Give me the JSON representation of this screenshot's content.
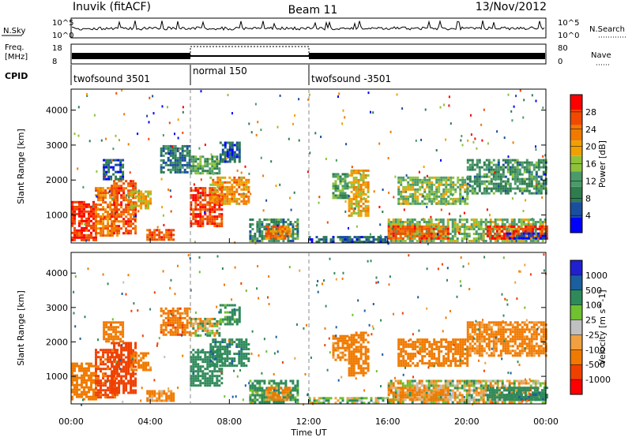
{
  "header": {
    "left_title": "Inuvik (fitACF)",
    "center_title": "Beam 11",
    "right_title": "13/Nov/2012"
  },
  "noise_panel": {
    "left_label": "N.Sky",
    "left_ticks": [
      "10^5",
      "10^0"
    ],
    "right_label": "N.Search",
    "right_ticks": [
      "10^5",
      "10^0"
    ]
  },
  "freq_panel": {
    "left_label_1": "Freq.",
    "left_label_2": "[MHz]",
    "left_ticks": [
      "18",
      "8"
    ],
    "right_label": "Nave",
    "right_ticks": [
      "80",
      "0"
    ]
  },
  "cpid_panel": {
    "label": "CPID",
    "segments": [
      {
        "name": "twofsound 3501",
        "start": 0,
        "end": 6
      },
      {
        "name": "normal 150",
        "start": 6,
        "end": 12
      },
      {
        "name": "twofsound -3501",
        "start": 12,
        "end": 24
      }
    ]
  },
  "colors": {
    "power_scale": [
      "#0000ff",
      "#1a4fa0",
      "#2e7d4f",
      "#4a9a6a",
      "#8fc23a",
      "#f0a000",
      "#f07a00",
      "#f04a00",
      "#ff0000"
    ],
    "velocity_scale": [
      "#ff0000",
      "#f04000",
      "#f07a00",
      "#f0a040",
      "#c0c0c0",
      "#70c030",
      "#2f8a5a",
      "#1a5fa0",
      "#2020d0"
    ]
  },
  "chart_data": [
    {
      "type": "heatmap",
      "panel": "power",
      "xlabel": "",
      "ylabel": "Slant Range [km]",
      "x_ticks": [
        "00:00",
        "04:00",
        "08:00",
        "12:00",
        "16:00",
        "20:00",
        "00:00"
      ],
      "xlim_hours": [
        0,
        24
      ],
      "ylim_km": [
        200,
        4600
      ],
      "y_ticks": [
        1000,
        2000,
        3000,
        4000
      ],
      "colorbar_label": "Power [dB]",
      "colorbar_ticks": [
        28,
        24,
        20,
        16,
        12,
        8,
        4
      ],
      "colorbar_range": [
        0,
        30
      ],
      "regions": [
        {
          "t0": 0.0,
          "t1": 1.2,
          "r0": 300,
          "r1": 1400,
          "value": 27
        },
        {
          "t0": 1.2,
          "t1": 2.3,
          "r0": 400,
          "r1": 1800,
          "value": 22
        },
        {
          "t0": 2.0,
          "t1": 3.2,
          "r0": 500,
          "r1": 2000,
          "value": 24
        },
        {
          "t0": 3.0,
          "t1": 4.0,
          "r0": 1200,
          "r1": 1700,
          "value": 18
        },
        {
          "t0": 3.8,
          "t1": 5.2,
          "r0": 300,
          "r1": 600,
          "value": 24
        },
        {
          "t0": 1.6,
          "t1": 2.6,
          "r0": 2000,
          "r1": 2600,
          "value": 6
        },
        {
          "t0": 6.0,
          "t1": 7.6,
          "r0": 700,
          "r1": 1800,
          "value": 26
        },
        {
          "t0": 7.0,
          "t1": 9.0,
          "r0": 1300,
          "r1": 2100,
          "value": 20
        },
        {
          "t0": 6.0,
          "t1": 7.5,
          "r0": 2200,
          "r1": 2700,
          "value": 12
        },
        {
          "t0": 7.5,
          "t1": 8.5,
          "r0": 2500,
          "r1": 3100,
          "value": 6
        },
        {
          "t0": 4.5,
          "t1": 6.0,
          "r0": 2200,
          "r1": 3000,
          "value": 8
        },
        {
          "t0": 9.0,
          "t1": 11.5,
          "r0": 250,
          "r1": 900,
          "value": 10
        },
        {
          "t0": 9.8,
          "t1": 11.0,
          "r0": 300,
          "r1": 700,
          "value": 22
        },
        {
          "t0": 12.0,
          "t1": 16.0,
          "r0": 250,
          "r1": 400,
          "value": 6
        },
        {
          "t0": 14.0,
          "t1": 15.0,
          "r0": 1000,
          "r1": 2300,
          "value": 18
        },
        {
          "t0": 13.2,
          "t1": 14.0,
          "r0": 1500,
          "r1": 2200,
          "value": 12
        },
        {
          "t0": 16.0,
          "t1": 24.0,
          "r0": 250,
          "r1": 900,
          "value": 14
        },
        {
          "t0": 16.0,
          "t1": 19.0,
          "r0": 300,
          "r1": 700,
          "value": 24
        },
        {
          "t0": 21.0,
          "t1": 24.0,
          "r0": 300,
          "r1": 700,
          "value": 26
        },
        {
          "t0": 16.5,
          "t1": 20.0,
          "r0": 1300,
          "r1": 2100,
          "value": 14
        },
        {
          "t0": 20.0,
          "t1": 24.0,
          "r0": 1600,
          "r1": 2600,
          "value": 10
        },
        {
          "t0": 22.0,
          "t1": 24.0,
          "r0": 300,
          "r1": 500,
          "value": 4
        }
      ]
    },
    {
      "type": "heatmap",
      "panel": "velocity",
      "xlabel": "Time UT",
      "ylabel": "Slant Range [km]",
      "x_ticks": [
        "00:00",
        "04:00",
        "08:00",
        "12:00",
        "16:00",
        "20:00",
        "00:00"
      ],
      "xlim_hours": [
        0,
        24
      ],
      "ylim_km": [
        200,
        4600
      ],
      "y_ticks": [
        1000,
        2000,
        3000,
        4000
      ],
      "colorbar_label": "Velocity [m s^-1]",
      "colorbar_ticks": [
        1000,
        500,
        100,
        25,
        -25,
        -100,
        -500,
        -1000
      ],
      "colorbar_range": [
        -1200,
        1200
      ],
      "regions": [
        {
          "t0": 0.0,
          "t1": 1.2,
          "r0": 300,
          "r1": 1400,
          "value": -300
        },
        {
          "t0": 1.2,
          "t1": 2.3,
          "r0": 400,
          "r1": 1800,
          "value": -600
        },
        {
          "t0": 2.0,
          "t1": 3.2,
          "r0": 500,
          "r1": 2000,
          "value": -800
        },
        {
          "t0": 3.0,
          "t1": 4.0,
          "r0": 1200,
          "r1": 1700,
          "value": -200
        },
        {
          "t0": 3.8,
          "t1": 5.2,
          "r0": 300,
          "r1": 600,
          "value": -150
        },
        {
          "t0": 1.6,
          "t1": 2.6,
          "r0": 2000,
          "r1": 2600,
          "value": -300
        },
        {
          "t0": 6.0,
          "t1": 7.6,
          "r0": 700,
          "r1": 1800,
          "value": 300
        },
        {
          "t0": 7.0,
          "t1": 9.0,
          "r0": 1300,
          "r1": 2100,
          "value": 400
        },
        {
          "t0": 6.0,
          "t1": 7.5,
          "r0": 2200,
          "r1": 2700,
          "value": 0
        },
        {
          "t0": 7.5,
          "t1": 8.5,
          "r0": 2500,
          "r1": 3100,
          "value": 200
        },
        {
          "t0": 4.5,
          "t1": 6.0,
          "r0": 2200,
          "r1": 3000,
          "value": -400
        },
        {
          "t0": 9.0,
          "t1": 11.5,
          "r0": 250,
          "r1": 900,
          "value": 200
        },
        {
          "t0": 9.8,
          "t1": 11.0,
          "r0": 300,
          "r1": 700,
          "value": -200
        },
        {
          "t0": 12.0,
          "t1": 16.0,
          "r0": 250,
          "r1": 400,
          "value": 50
        },
        {
          "t0": 14.0,
          "t1": 15.0,
          "r0": 1000,
          "r1": 2300,
          "value": -300
        },
        {
          "t0": 13.2,
          "t1": 14.0,
          "r0": 1500,
          "r1": 2200,
          "value": -200
        },
        {
          "t0": 16.0,
          "t1": 24.0,
          "r0": 250,
          "r1": 900,
          "value": 0
        },
        {
          "t0": 16.0,
          "t1": 19.0,
          "r0": 300,
          "r1": 700,
          "value": -150
        },
        {
          "t0": 21.0,
          "t1": 24.0,
          "r0": 300,
          "r1": 700,
          "value": 300
        },
        {
          "t0": 16.5,
          "t1": 20.0,
          "r0": 1300,
          "r1": 2100,
          "value": -250
        },
        {
          "t0": 20.0,
          "t1": 24.0,
          "r0": 1600,
          "r1": 2600,
          "value": -200
        },
        {
          "t0": 22.0,
          "t1": 24.0,
          "r0": 300,
          "r1": 500,
          "value": 400
        }
      ]
    }
  ]
}
